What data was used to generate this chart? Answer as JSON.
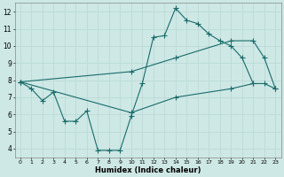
{
  "xlabel": "Humidex (Indice chaleur)",
  "background_color": "#cde8e5",
  "grid_color": "#b8d8d4",
  "line_color": "#1a6b6b",
  "xlim": [
    -0.5,
    23.5
  ],
  "ylim": [
    3.5,
    12.5
  ],
  "xticks": [
    0,
    1,
    2,
    3,
    4,
    5,
    6,
    7,
    8,
    9,
    10,
    11,
    12,
    13,
    14,
    15,
    16,
    17,
    18,
    19,
    20,
    21,
    22,
    23
  ],
  "yticks": [
    4,
    5,
    6,
    7,
    8,
    9,
    10,
    11,
    12
  ],
  "line1_x": [
    0,
    1,
    2,
    3,
    4,
    5,
    6,
    7,
    8,
    9,
    10,
    11,
    12,
    13,
    14,
    15,
    16,
    17,
    18,
    19,
    20,
    21
  ],
  "line1_y": [
    7.9,
    7.5,
    6.8,
    7.3,
    5.6,
    5.6,
    6.2,
    3.9,
    3.9,
    3.9,
    5.9,
    7.8,
    10.5,
    10.6,
    12.2,
    11.5,
    11.3,
    10.7,
    10.3,
    10.0,
    9.3,
    7.8
  ],
  "line2_x": [
    0,
    10,
    14,
    19,
    21,
    22,
    23
  ],
  "line2_y": [
    7.9,
    8.5,
    9.3,
    10.3,
    10.3,
    9.3,
    7.5
  ],
  "line3_x": [
    0,
    10,
    14,
    19,
    21,
    22,
    23
  ],
  "line3_y": [
    7.9,
    6.1,
    7.0,
    7.5,
    7.8,
    7.8,
    7.5
  ]
}
